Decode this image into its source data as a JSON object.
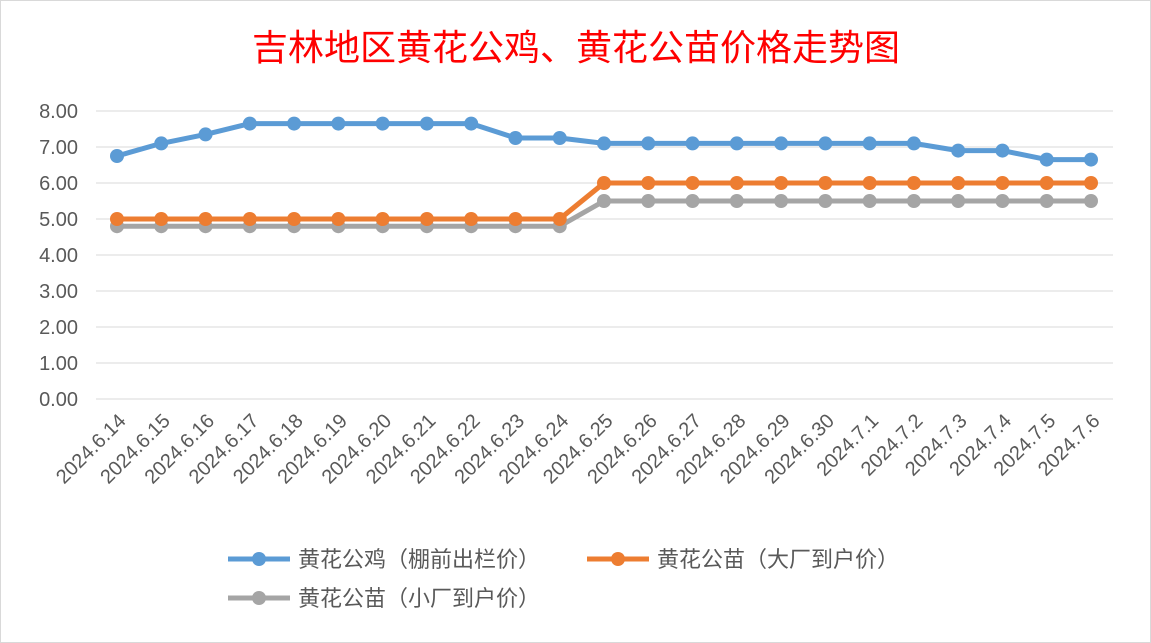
{
  "chart_data": {
    "type": "line",
    "title": "吉林地区黄花公鸡、黄花公苗价格走势图",
    "xlabel": "",
    "ylabel": "",
    "ylim": [
      0,
      8
    ],
    "yticks": [
      "0.00",
      "1.00",
      "2.00",
      "3.00",
      "4.00",
      "5.00",
      "6.00",
      "7.00",
      "8.00"
    ],
    "grid": true,
    "legend_position": "bottom",
    "categories": [
      "2024.6.14",
      "2024.6.15",
      "2024.6.16",
      "2024.6.17",
      "2024.6.18",
      "2024.6.19",
      "2024.6.20",
      "2024.6.21",
      "2024.6.22",
      "2024.6.23",
      "2024.6.24",
      "2024.6.25",
      "2024.6.26",
      "2024.6.27",
      "2024.6.28",
      "2024.6.29",
      "2024.6.30",
      "2024.7.1",
      "2024.7.2",
      "2024.7.3",
      "2024.7.4",
      "2024.7.5",
      "2024.7.6"
    ],
    "series": [
      {
        "name": "黄花公鸡（棚前出栏价）",
        "color": "#5b9bd5",
        "values": [
          6.75,
          7.1,
          7.35,
          7.65,
          7.65,
          7.65,
          7.65,
          7.65,
          7.65,
          7.25,
          7.25,
          7.1,
          7.1,
          7.1,
          7.1,
          7.1,
          7.1,
          7.1,
          7.1,
          6.9,
          6.9,
          6.65,
          6.65
        ]
      },
      {
        "name": "黄花公苗（大厂到户价）",
        "color": "#ed7d31",
        "values": [
          5.0,
          5.0,
          5.0,
          5.0,
          5.0,
          5.0,
          5.0,
          5.0,
          5.0,
          5.0,
          5.0,
          6.0,
          6.0,
          6.0,
          6.0,
          6.0,
          6.0,
          6.0,
          6.0,
          6.0,
          6.0,
          6.0,
          6.0
        ]
      },
      {
        "name": "黄花公苗（小厂到户价）",
        "color": "#a5a5a5",
        "values": [
          4.8,
          4.8,
          4.8,
          4.8,
          4.8,
          4.8,
          4.8,
          4.8,
          4.8,
          4.8,
          4.8,
          5.5,
          5.5,
          5.5,
          5.5,
          5.5,
          5.5,
          5.5,
          5.5,
          5.5,
          5.5,
          5.5,
          5.5
        ]
      }
    ]
  },
  "colors": {
    "title": "#ff0000",
    "tick_text": "#595959",
    "gridline": "#d9d9d9",
    "border": "#d9d9d9"
  }
}
